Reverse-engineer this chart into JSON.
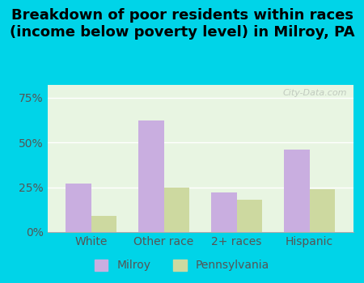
{
  "categories": [
    "White",
    "Other race",
    "2+ races",
    "Hispanic"
  ],
  "milroy_values": [
    27,
    62,
    22,
    46
  ],
  "pa_values": [
    9,
    25,
    18,
    24
  ],
  "milroy_color": "#c9aee0",
  "pa_color": "#cdd9a0",
  "title": "Breakdown of poor residents within races\n(income below poverty level) in Milroy, PA",
  "title_fontsize": 13,
  "ylabel_ticks": [
    0,
    25,
    50,
    75
  ],
  "ylabel_labels": [
    "0%",
    "25%",
    "50%",
    "75%"
  ],
  "ylim": [
    0,
    82
  ],
  "bar_width": 0.35,
  "legend_labels": [
    "Milroy",
    "Pennsylvania"
  ],
  "background_color": "#e8f5e2",
  "outer_background": "#00d4e8",
  "watermark": "City-Data.com"
}
